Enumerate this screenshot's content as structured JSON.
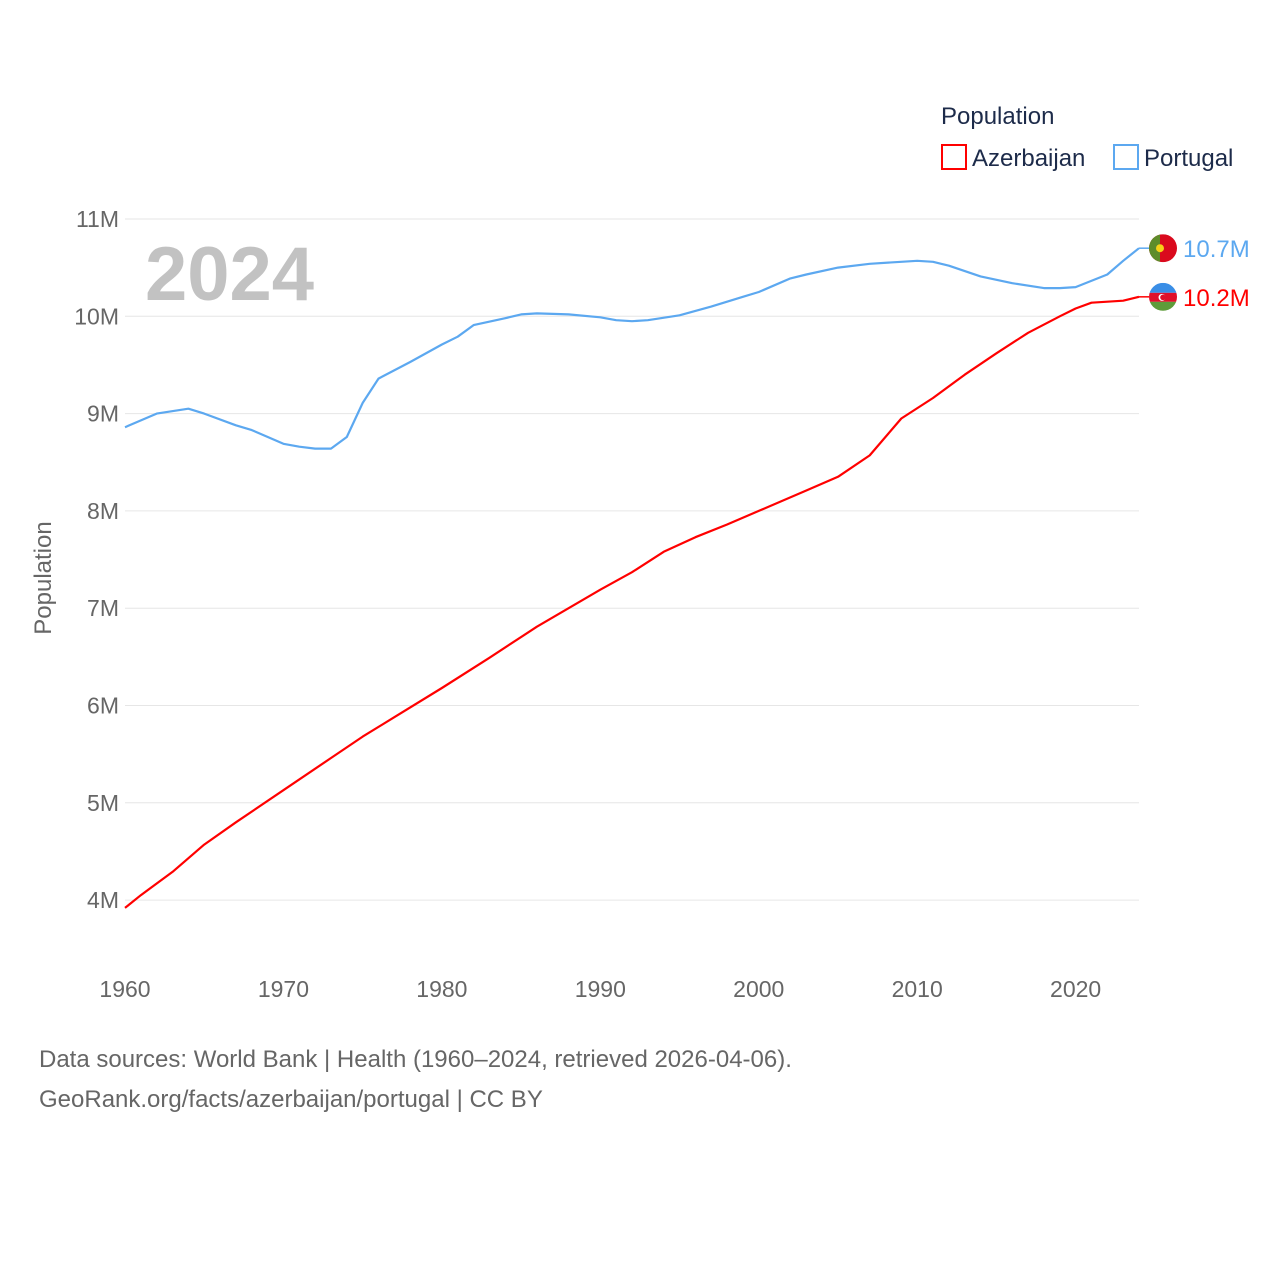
{
  "chart_data": {
    "type": "line",
    "title": "",
    "year_label": "2024",
    "xlabel": "",
    "ylabel": "Population",
    "xlim": [
      1960,
      2024
    ],
    "ylim": [
      3.6,
      11
    ],
    "y_ticks": [
      {
        "v": 4,
        "label": "4M"
      },
      {
        "v": 5,
        "label": "5M"
      },
      {
        "v": 6,
        "label": "6M"
      },
      {
        "v": 7,
        "label": "7M"
      },
      {
        "v": 8,
        "label": "8M"
      },
      {
        "v": 9,
        "label": "9M"
      },
      {
        "v": 10,
        "label": "10M"
      },
      {
        "v": 11,
        "label": "11M"
      }
    ],
    "x_ticks": [
      {
        "v": 1960,
        "label": "1960"
      },
      {
        "v": 1970,
        "label": "1970"
      },
      {
        "v": 1980,
        "label": "1980"
      },
      {
        "v": 1990,
        "label": "1990"
      },
      {
        "v": 2000,
        "label": "2000"
      },
      {
        "v": 2010,
        "label": "2010"
      },
      {
        "v": 2020,
        "label": "2020"
      }
    ],
    "grid": true,
    "legend": {
      "title": "Population",
      "placement": "top-right"
    },
    "series": [
      {
        "name": "Azerbaijan",
        "color": "#ff0000",
        "end_label": "10.2M",
        "flag": "azerbaijan-flag",
        "x": [
          1960,
          1961,
          1963,
          1965,
          1967,
          1970,
          1973,
          1975,
          1977,
          1980,
          1983,
          1986,
          1990,
          1992,
          1994,
          1996,
          1998,
          2000,
          2003,
          2005,
          2007,
          2009,
          2011,
          2013,
          2015,
          2017,
          2019,
          2020,
          2021,
          2023,
          2024
        ],
        "y": [
          3.92,
          4.05,
          4.29,
          4.57,
          4.8,
          5.13,
          5.46,
          5.68,
          5.88,
          6.18,
          6.49,
          6.81,
          7.19,
          7.37,
          7.58,
          7.73,
          7.86,
          8.0,
          8.21,
          8.35,
          8.57,
          8.95,
          9.16,
          9.4,
          9.62,
          9.83,
          10.0,
          10.08,
          10.14,
          10.16,
          10.2
        ]
      },
      {
        "name": "Portugal",
        "color": "#5ca8f0",
        "end_label": "10.7M",
        "flag": "portugal-flag",
        "x": [
          1960,
          1962,
          1964,
          1965,
          1967,
          1968,
          1970,
          1971,
          1972,
          1973,
          1974,
          1975,
          1976,
          1978,
          1980,
          1981,
          1982,
          1984,
          1985,
          1986,
          1988,
          1990,
          1991,
          1992,
          1993,
          1995,
          1997,
          1999,
          2000,
          2002,
          2003,
          2005,
          2007,
          2009,
          2010,
          2011,
          2012,
          2014,
          2016,
          2018,
          2019,
          2020,
          2022,
          2023,
          2024
        ],
        "y": [
          8.86,
          9.0,
          9.05,
          9.0,
          8.88,
          8.83,
          8.69,
          8.66,
          8.64,
          8.64,
          8.76,
          9.11,
          9.36,
          9.53,
          9.71,
          9.79,
          9.91,
          9.98,
          10.02,
          10.03,
          10.02,
          9.99,
          9.96,
          9.95,
          9.96,
          10.01,
          10.1,
          10.2,
          10.25,
          10.39,
          10.43,
          10.5,
          10.54,
          10.56,
          10.57,
          10.56,
          10.52,
          10.41,
          10.34,
          10.29,
          10.29,
          10.3,
          10.43,
          10.57,
          10.7
        ]
      }
    ]
  },
  "footer": {
    "line1": "Data sources: World Bank | Health (1960–2024, retrieved 2026-04-06).",
    "line2": "GeoRank.org/facts/azerbaijan/portugal | CC BY"
  }
}
